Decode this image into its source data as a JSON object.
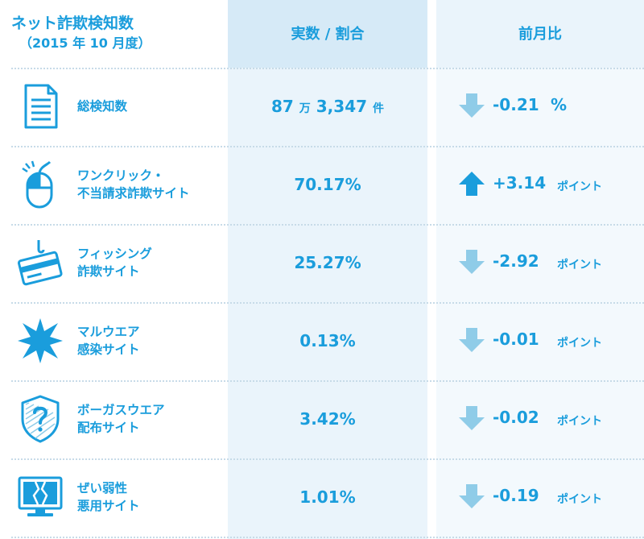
{
  "header": {
    "title": "ネット詐欺検知数",
    "subtitle": "（2015 年 10 月度）",
    "col_ratio": "実数 / 割合",
    "col_change": "前月比"
  },
  "colors": {
    "accent": "#1a9ddc",
    "arrow_up": "#1a9ddc",
    "arrow_down": "#8fcce8"
  },
  "chart_data": {
    "type": "table",
    "columns": [
      "ネット詐欺検知数（2015 年 10 月度）",
      "実数 / 割合",
      "前月比"
    ],
    "rows": [
      {
        "icon": "document-icon",
        "label": [
          "総検知数"
        ],
        "value_num1": "87",
        "value_unit1": "万",
        "value_num2": "3,347",
        "value_unit2": "件",
        "direction": "down",
        "change": "-0.21",
        "unit": "%"
      },
      {
        "icon": "mouse-icon",
        "label": [
          "ワンクリック・",
          "不当請求詐欺サイト"
        ],
        "value": "70.17%",
        "direction": "up",
        "change": "+3.14",
        "unit": "ポイント"
      },
      {
        "icon": "credit-card-hook-icon",
        "label": [
          "フィッシング",
          "詐欺サイト"
        ],
        "value": "25.27%",
        "direction": "down",
        "change": "-2.92",
        "unit": "ポイント"
      },
      {
        "icon": "malware-burst-icon",
        "label": [
          "マルウエア",
          "感染サイト"
        ],
        "value": "0.13%",
        "direction": "down",
        "change": "-0.01",
        "unit": "ポイント"
      },
      {
        "icon": "shield-question-icon",
        "label": [
          "ボーガスウエア",
          "配布サイト"
        ],
        "value": "3.42%",
        "direction": "down",
        "change": "-0.02",
        "unit": "ポイント"
      },
      {
        "icon": "broken-monitor-icon",
        "label": [
          "ぜい弱性",
          "悪用サイト"
        ],
        "value": "1.01%",
        "direction": "down",
        "change": "-0.19",
        "unit": "ポイント"
      }
    ]
  }
}
